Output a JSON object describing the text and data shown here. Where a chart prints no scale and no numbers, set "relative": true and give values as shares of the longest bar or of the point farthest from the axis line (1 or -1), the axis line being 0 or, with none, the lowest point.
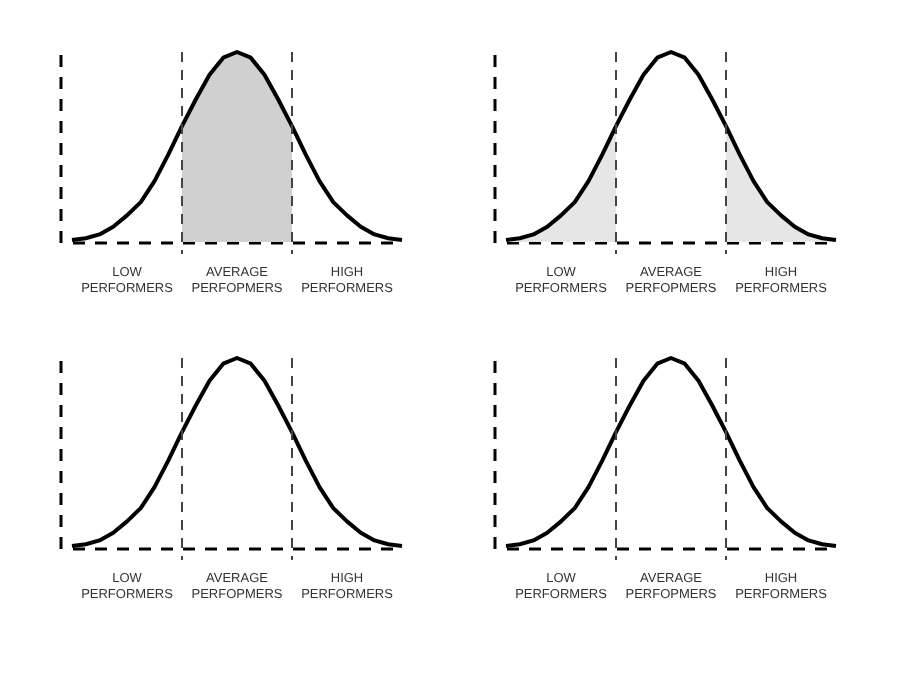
{
  "chart_data": [
    {
      "type": "line",
      "relative": true,
      "categories": [
        null,
        null,
        null,
        null,
        null,
        null,
        null,
        null,
        null,
        null,
        null,
        null,
        null,
        null,
        null,
        null,
        null,
        null,
        null,
        null,
        null,
        null,
        null,
        null,
        null
      ],
      "marker": "none",
      "line_style": "solid",
      "series": [
        {
          "type": "area",
          "color": "#d0d0d0",
          "values": [
            null,
            null,
            null,
            null,
            null,
            null,
            null,
            null,
            0.61,
            0.75,
            0.88,
            0.97,
            1,
            0.97,
            0.88,
            0.75,
            0.61,
            null,
            null,
            null,
            null,
            null,
            null,
            null,
            null
          ]
        },
        {
          "color": "#000000",
          "values": [
            0.01,
            0.02,
            0.04,
            0.08,
            0.14,
            0.21,
            0.32,
            0.46,
            0.61,
            0.75,
            0.88,
            0.97,
            1,
            0.97,
            0.88,
            0.75,
            0.61,
            0.46,
            0.32,
            0.21,
            0.14,
            0.08,
            0.04,
            0.02,
            0.01
          ]
        }
      ],
      "annotations": [
        "LOW PERFORMERS",
        "AVERAGE PERFOPMERS",
        "HIGH PERFORMERS"
      ]
    },
    {
      "type": "line",
      "relative": true,
      "categories": [
        null,
        null,
        null,
        null,
        null,
        null,
        null,
        null,
        null,
        null,
        null,
        null,
        null,
        null,
        null,
        null,
        null,
        null,
        null,
        null,
        null,
        null,
        null,
        null,
        null
      ],
      "marker": "none",
      "line_style": "solid",
      "series": [
        {
          "type": "area",
          "color": "#e6e6e6",
          "values": [
            0.01,
            0.02,
            0.04,
            0.08,
            0.14,
            0.21,
            0.32,
            0.46,
            0.61,
            null,
            null,
            null,
            null,
            null,
            null,
            null,
            null,
            null,
            null,
            null,
            null,
            null,
            null,
            null,
            null
          ]
        },
        {
          "type": "area",
          "color": "#e6e6e6",
          "values": [
            null,
            null,
            null,
            null,
            null,
            null,
            null,
            null,
            null,
            null,
            null,
            null,
            null,
            null,
            null,
            null,
            0.61,
            0.46,
            0.32,
            0.21,
            0.14,
            0.08,
            0.04,
            0.02,
            0.01
          ]
        },
        {
          "color": "#000000",
          "values": [
            0.01,
            0.02,
            0.04,
            0.08,
            0.14,
            0.21,
            0.32,
            0.46,
            0.61,
            0.75,
            0.88,
            0.97,
            1,
            0.97,
            0.88,
            0.75,
            0.61,
            0.46,
            0.32,
            0.21,
            0.14,
            0.08,
            0.04,
            0.02,
            0.01
          ]
        }
      ],
      "annotations": [
        "LOW PERFORMERS",
        "AVERAGE PERFOPMERS",
        "HIGH PERFORMERS"
      ]
    },
    {
      "type": "line",
      "relative": true,
      "categories": [
        null,
        null,
        null,
        null,
        null,
        null,
        null,
        null,
        null,
        null,
        null,
        null,
        null,
        null,
        null,
        null,
        null,
        null,
        null,
        null,
        null,
        null,
        null,
        null,
        null
      ],
      "marker": "none",
      "line_style": "solid",
      "series": [
        {
          "color": "#000000",
          "values": [
            0.01,
            0.02,
            0.04,
            0.08,
            0.14,
            0.21,
            0.32,
            0.46,
            0.61,
            0.75,
            0.88,
            0.97,
            1,
            0.97,
            0.88,
            0.75,
            0.61,
            0.46,
            0.32,
            0.21,
            0.14,
            0.08,
            0.04,
            0.02,
            0.01
          ]
        }
      ],
      "annotations": [
        "LOW PERFORMERS",
        "AVERAGE PERFOPMERS",
        "HIGH PERFORMERS"
      ]
    },
    {
      "type": "line",
      "relative": true,
      "categories": [
        null,
        null,
        null,
        null,
        null,
        null,
        null,
        null,
        null,
        null,
        null,
        null,
        null,
        null,
        null,
        null,
        null,
        null,
        null,
        null,
        null,
        null,
        null,
        null,
        null
      ],
      "marker": "none",
      "line_style": "solid",
      "series": [
        {
          "color": "#000000",
          "values": [
            0.01,
            0.02,
            0.04,
            0.08,
            0.14,
            0.21,
            0.32,
            0.46,
            0.61,
            0.75,
            0.88,
            0.97,
            1,
            0.97,
            0.88,
            0.75,
            0.61,
            0.46,
            0.32,
            0.21,
            0.14,
            0.08,
            0.04,
            0.02,
            0.01
          ]
        }
      ],
      "annotations": [
        "LOW PERFORMERS",
        "AVERAGE PERFOPMERS",
        "HIGH PERFORMERS"
      ]
    }
  ]
}
